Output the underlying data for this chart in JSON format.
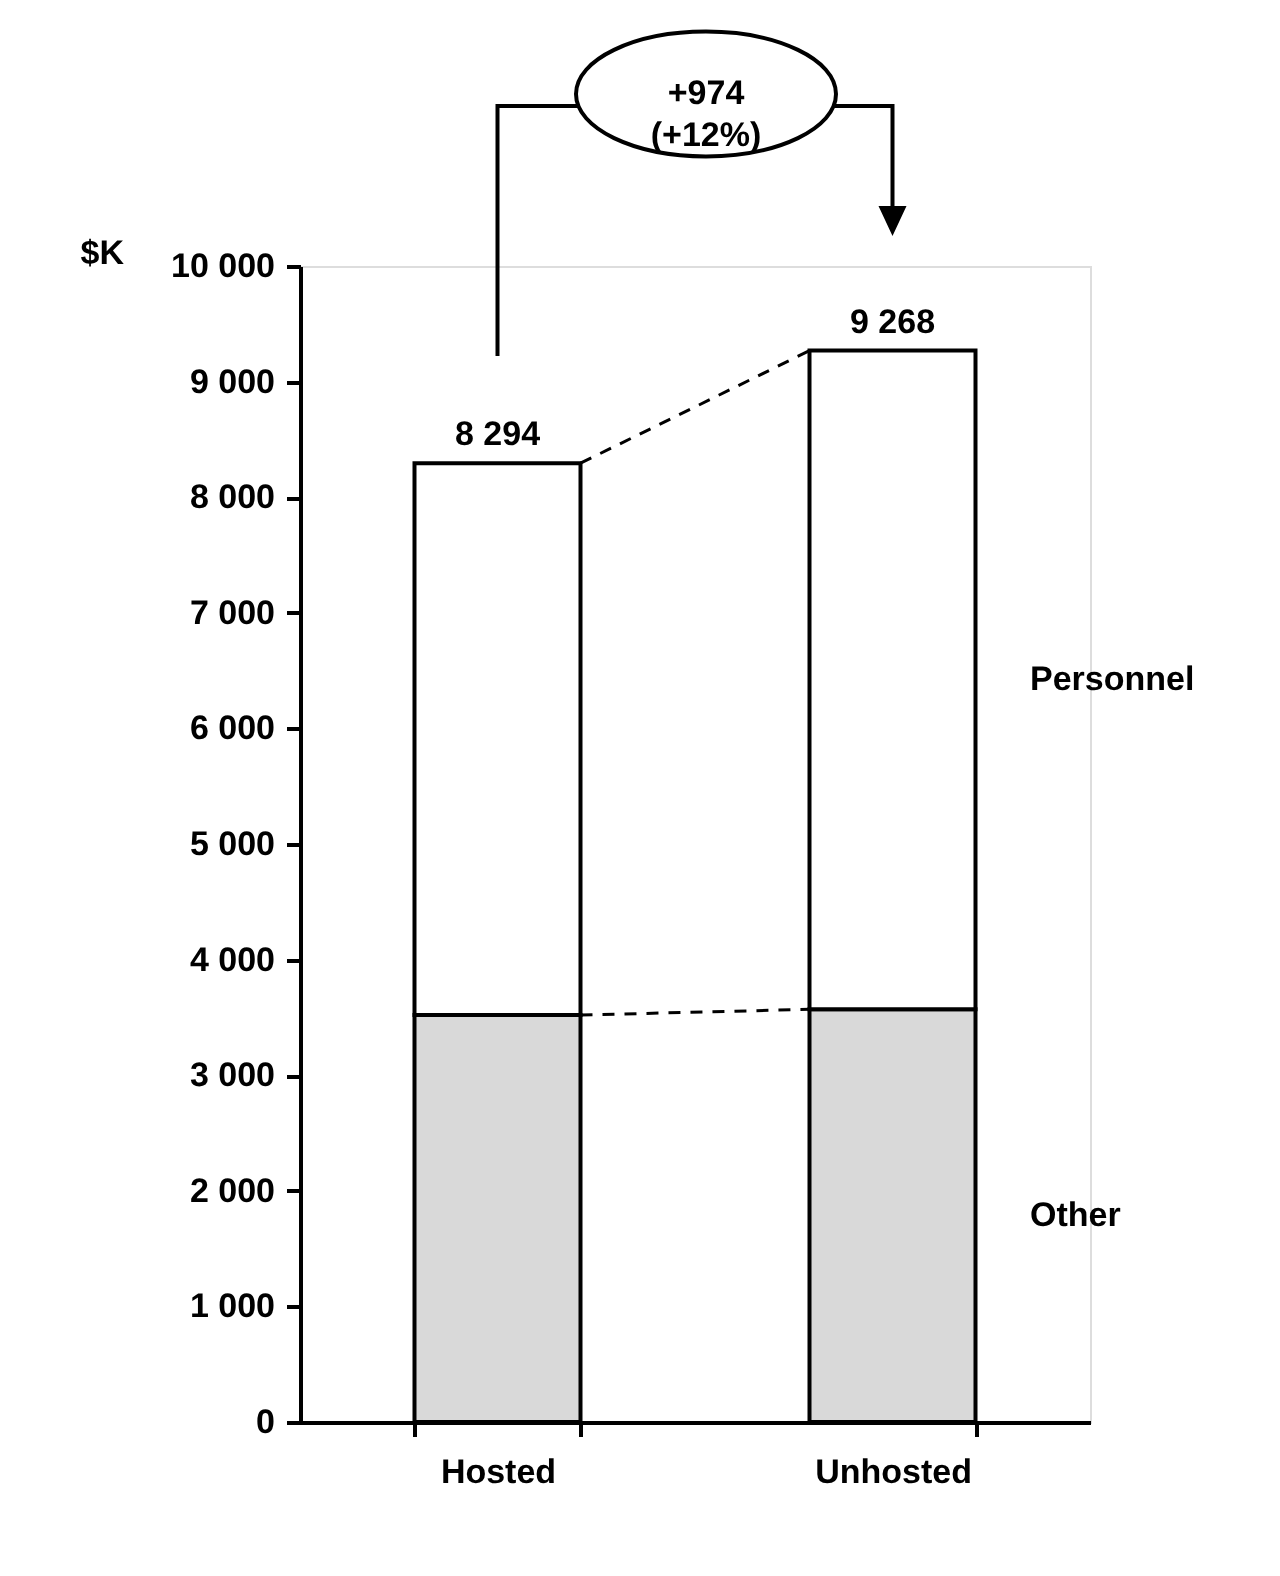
{
  "chart_data": {
    "type": "bar",
    "stacked": true,
    "ylabel": "$K",
    "categories": [
      "Hosted",
      "Unhosted"
    ],
    "series": [
      {
        "name": "Other",
        "color": "#d9d9d9",
        "values": [
          3520,
          3570
        ]
      },
      {
        "name": "Personnel",
        "color": "#ffffff",
        "values": [
          4774,
          5698
        ]
      }
    ],
    "totals": [
      "8 294",
      "9 268"
    ],
    "annotations": [
      "+974 (+12%)"
    ],
    "ylim": [
      0,
      10000
    ],
    "yticks": [
      0,
      {
        "value": 1000,
        "label": "1 000"
      },
      {
        "value": 2000,
        "label": "2 000"
      },
      {
        "value": 3000,
        "label": "3 000"
      },
      {
        "value": 4000,
        "label": "4 000"
      },
      {
        "value": 5000,
        "label": "5 000"
      },
      {
        "value": 6000,
        "label": "6 000"
      },
      {
        "value": 7000,
        "label": "7 000"
      },
      {
        "value": 8000,
        "label": "8 000"
      },
      {
        "value": 9000,
        "label": "9 000"
      },
      {
        "value": 10000,
        "label": "10 000"
      }
    ],
    "grid": false
  }
}
